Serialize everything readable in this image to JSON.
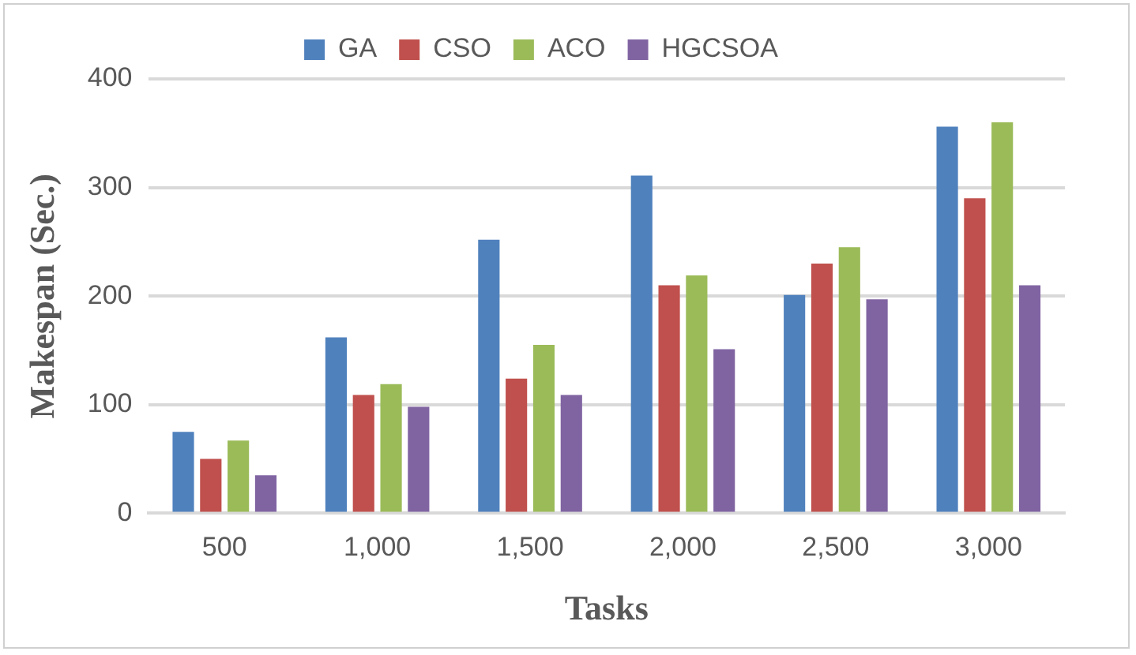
{
  "chart_data": {
    "type": "bar",
    "xlabel": "Tasks",
    "ylabel": "Makespan (Sec.)",
    "categories": [
      "500",
      "1,000",
      "1,500",
      "2,000",
      "2,500",
      "3,000"
    ],
    "series": [
      {
        "name": "GA",
        "color": "#4f81bd",
        "values": [
          75,
          162,
          252,
          311,
          201,
          356
        ]
      },
      {
        "name": "CSO",
        "color": "#c0504d",
        "values": [
          50,
          109,
          124,
          210,
          230,
          290
        ]
      },
      {
        "name": "ACO",
        "color": "#9bbb59",
        "values": [
          67,
          119,
          155,
          219,
          245,
          360
        ]
      },
      {
        "name": "HGCSOA",
        "color": "#8064a2",
        "values": [
          35,
          98,
          109,
          151,
          197,
          210
        ]
      }
    ],
    "ylim": [
      0,
      400
    ],
    "yticks": [
      0,
      100,
      200,
      300,
      400
    ],
    "grid": "y",
    "legend": "top"
  }
}
